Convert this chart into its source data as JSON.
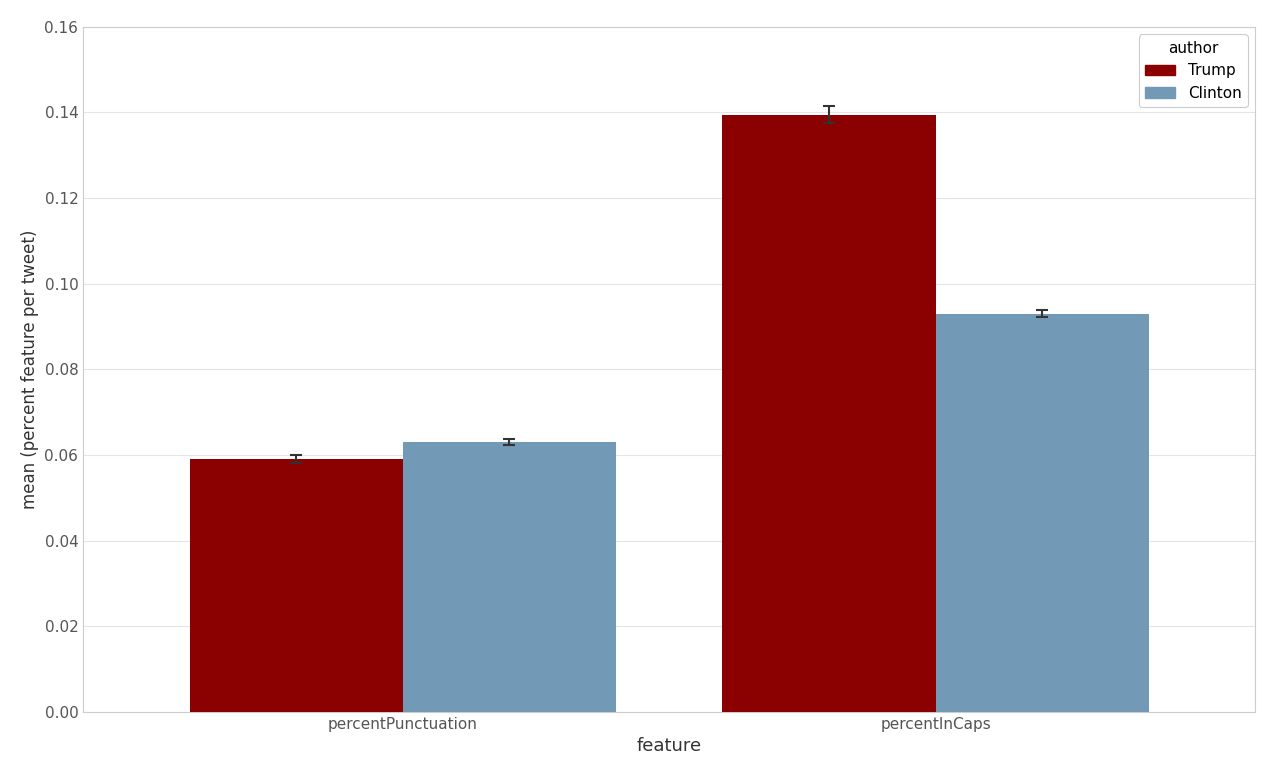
{
  "categories": [
    "percentPunctuation",
    "percentInCaps"
  ],
  "trump_values": [
    0.059,
    0.1395
  ],
  "clinton_values": [
    0.063,
    0.093
  ],
  "trump_errors": [
    0.001,
    0.002
  ],
  "clinton_errors": [
    0.0008,
    0.0008
  ],
  "trump_color": "#8B0000",
  "clinton_color": "#7299B5",
  "xlabel": "feature",
  "ylabel": "mean (percent feature per tweet)",
  "legend_title": "author",
  "legend_trump": "Trump",
  "legend_clinton": "Clinton",
  "ylim": [
    0,
    0.16
  ],
  "yticks": [
    0.0,
    0.02,
    0.04,
    0.06,
    0.08,
    0.1,
    0.12,
    0.14,
    0.16
  ],
  "bar_width": 0.4,
  "background_color": "#ffffff",
  "figure_bg": "#ffffff",
  "xlabel_fontsize": 13,
  "ylabel_fontsize": 12,
  "tick_fontsize": 11
}
